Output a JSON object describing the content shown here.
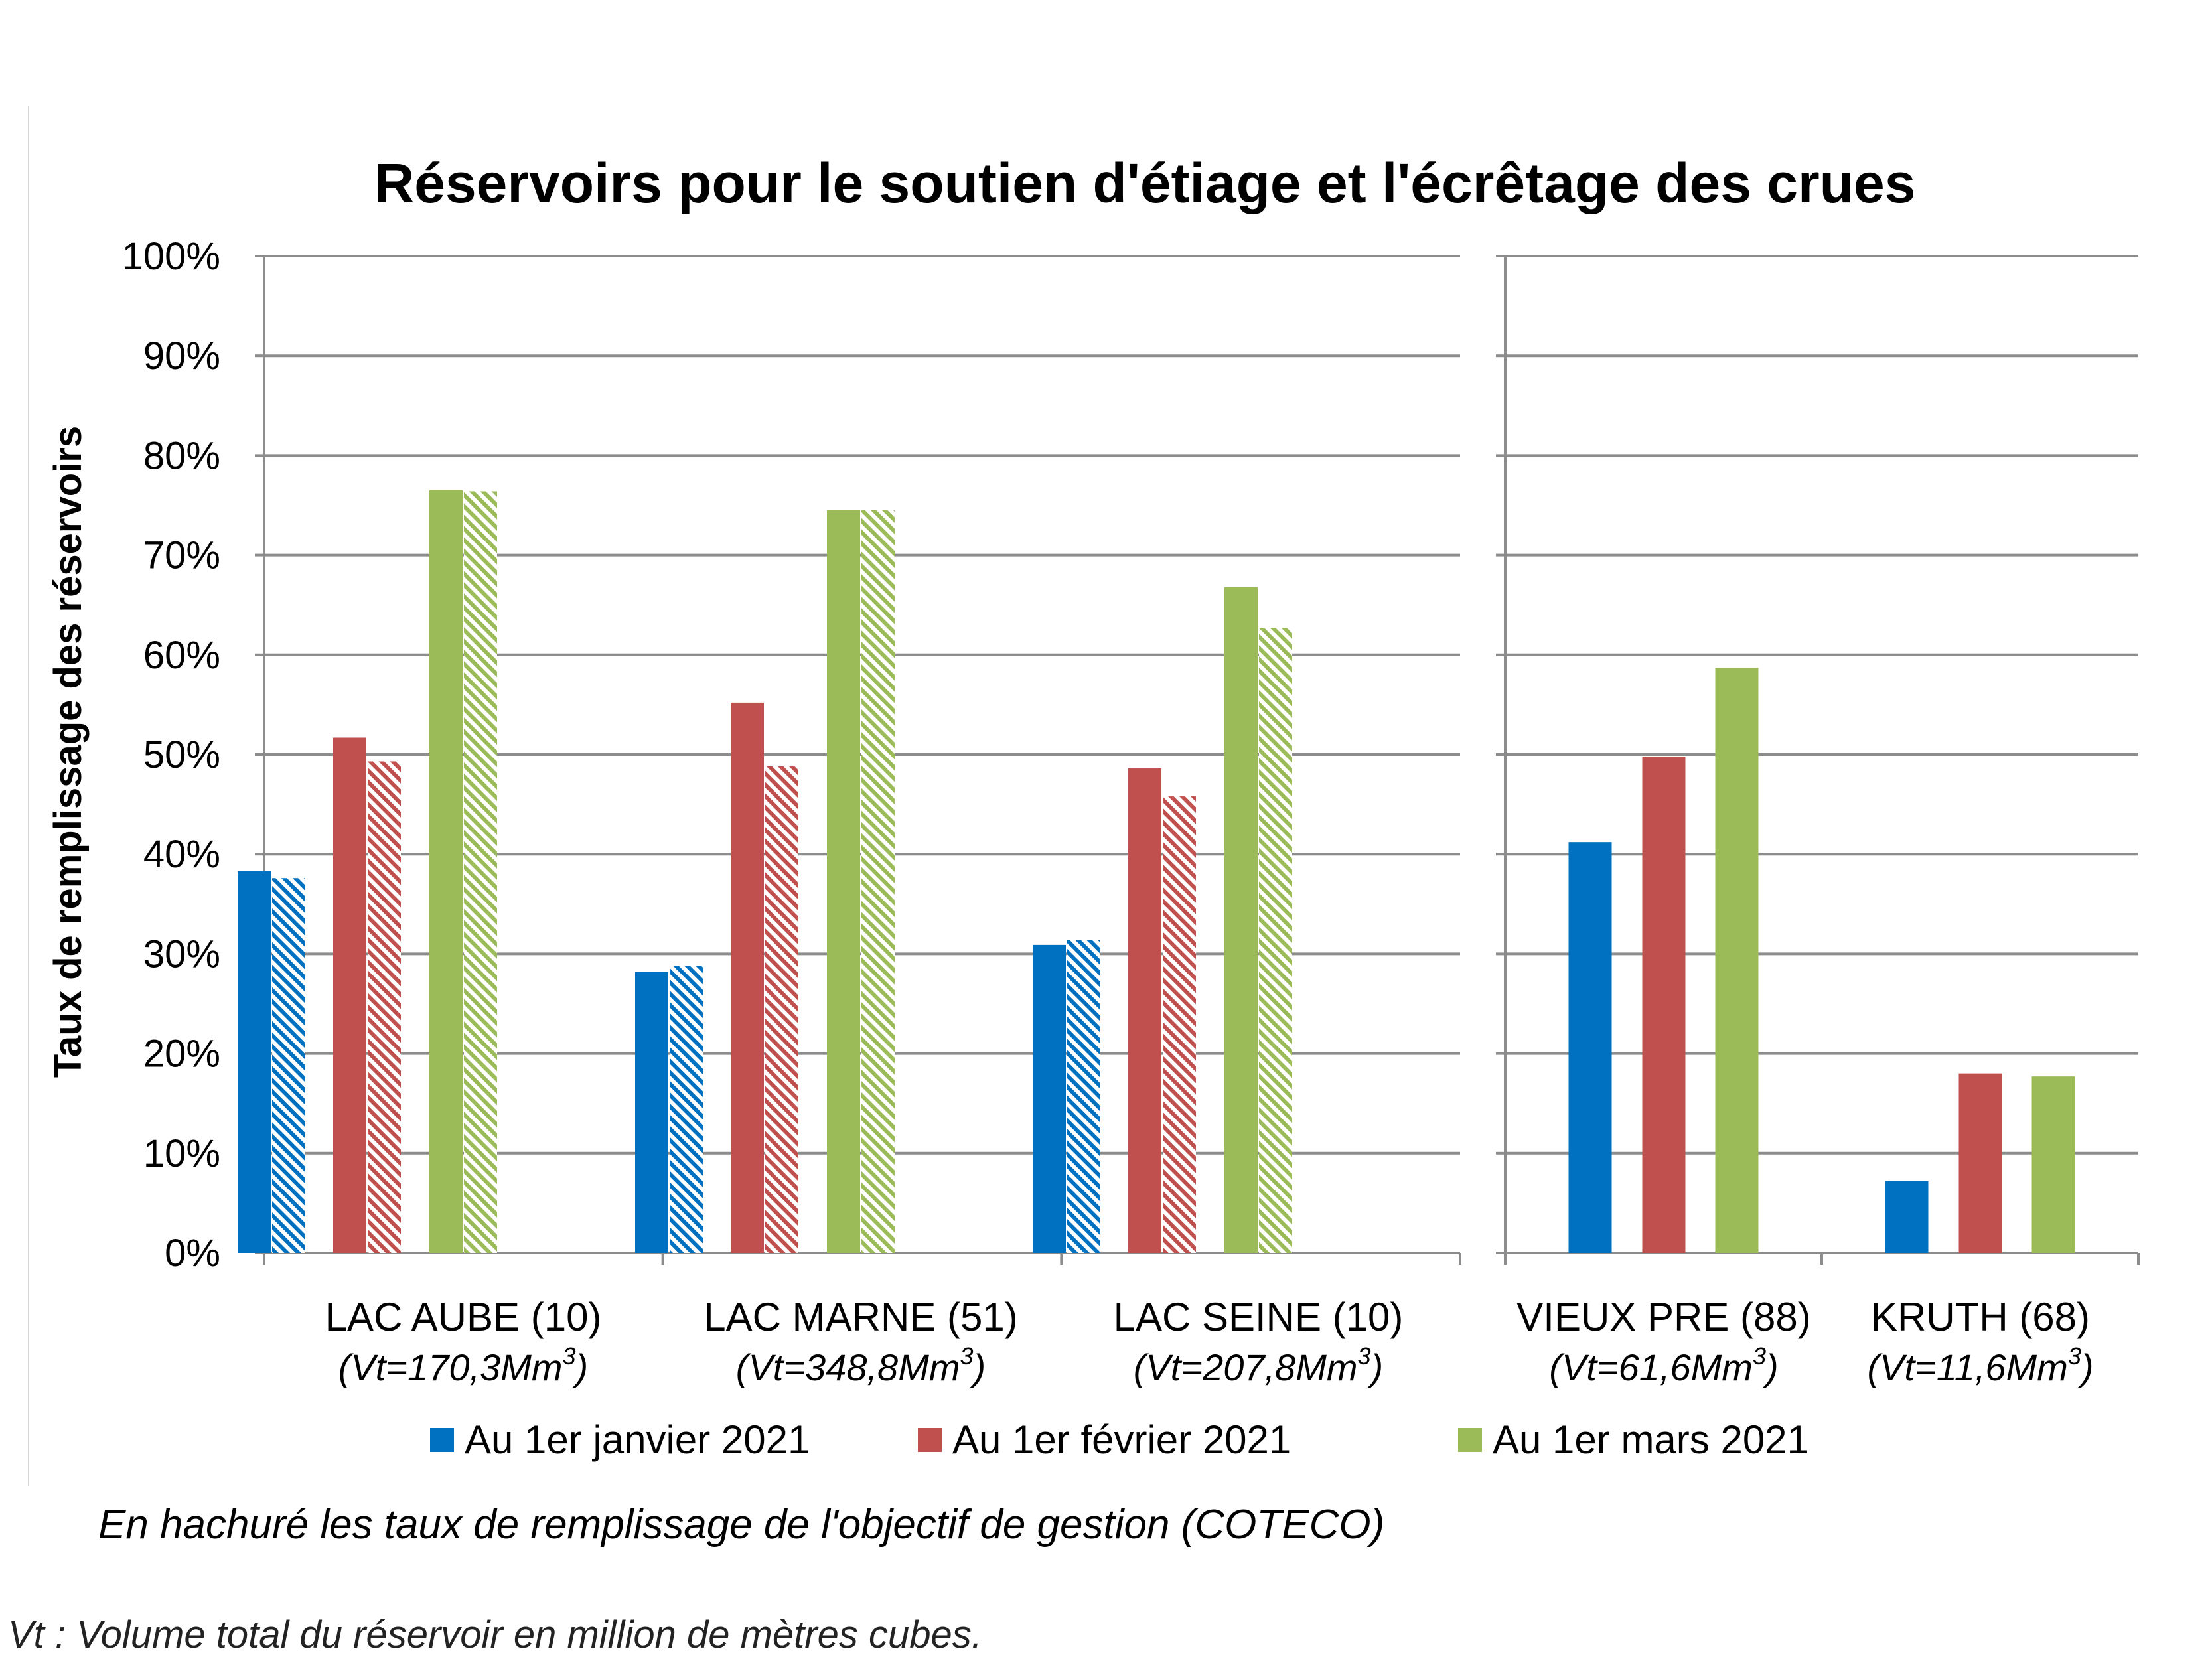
{
  "chart_data": {
    "type": "bar",
    "title": "Réservoirs pour le soutien d'étiage et l'écrêtage des crues",
    "ylabel": "Taux de remplissage des réservoirs",
    "ylim": [
      0,
      100
    ],
    "yticks": [
      "0%",
      "10%",
      "20%",
      "30%",
      "40%",
      "50%",
      "60%",
      "70%",
      "80%",
      "90%",
      "100%"
    ],
    "grid": true,
    "legend_position": "bottom",
    "panels": [
      {
        "categories": [
          {
            "name": "LAC AUBE (10)",
            "vt_prefix": "(Vt=170,3Mm",
            "vt_sup": "3",
            "vt_suffix": ")"
          },
          {
            "name": "LAC MARNE (51)",
            "vt_prefix": "(Vt=348,8Mm",
            "vt_sup": "3",
            "vt_suffix": ")"
          },
          {
            "name": "LAC SEINE (10)",
            "vt_prefix": "(Vt=207,8Mm",
            "vt_sup": "3",
            "vt_suffix": ")"
          }
        ],
        "series": [
          {
            "name": "Au 1er janvier 2021",
            "color": "#0070c0",
            "values": [
              38.3,
              28.2,
              30.9
            ],
            "target": [
              37.6,
              28.8,
              31.4
            ]
          },
          {
            "name": "Au 1er février 2021",
            "color": "#c0504d",
            "values": [
              51.7,
              55.2,
              48.6
            ],
            "target": [
              49.3,
              48.8,
              45.8
            ]
          },
          {
            "name": "Au 1er mars 2021",
            "color": "#9bbb59",
            "values": [
              76.5,
              74.5,
              66.8
            ],
            "target": [
              76.4,
              74.5,
              62.7
            ]
          }
        ]
      },
      {
        "categories": [
          {
            "name": "VIEUX PRE (88)",
            "vt_prefix": "(Vt=61,6Mm",
            "vt_sup": "3",
            "vt_suffix": ")"
          },
          {
            "name": "KRUTH (68)",
            "vt_prefix": "(Vt=11,6Mm",
            "vt_sup": "3",
            "vt_suffix": ")"
          }
        ],
        "series": [
          {
            "name": "Au 1er janvier 2021",
            "color": "#0070c0",
            "values": [
              41.2,
              7.2
            ]
          },
          {
            "name": "Au 1er février 2021",
            "color": "#c0504d",
            "values": [
              49.8,
              18.0
            ]
          },
          {
            "name": "Au 1er mars 2021",
            "color": "#9bbb59",
            "values": [
              58.7,
              17.7
            ]
          }
        ]
      }
    ],
    "legend": [
      {
        "name": "Au 1er janvier 2021",
        "color": "#0070c0"
      },
      {
        "name": "Au 1er février 2021",
        "color": "#c0504d"
      },
      {
        "name": "Au 1er mars 2021",
        "color": "#9bbb59"
      }
    ],
    "note": "En hachuré les taux de remplissage de l'objectif de gestion (COTECO)"
  },
  "footnote": "Vt : Volume total du réservoir en million de mètres cubes."
}
